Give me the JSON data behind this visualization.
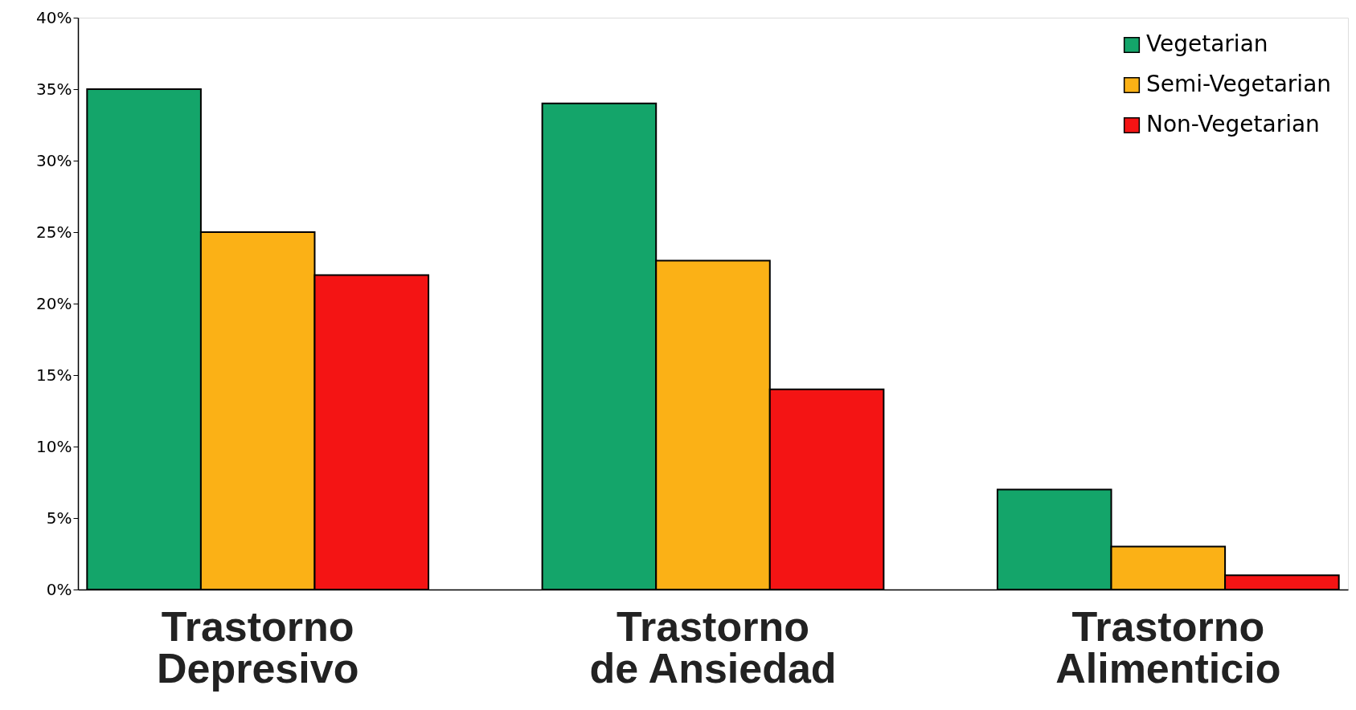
{
  "chart_data": {
    "type": "bar",
    "categories": [
      "Trastorno Depresivo",
      "Trastorno de Ansiedad",
      "Trastorno Alimenticio"
    ],
    "series": [
      {
        "name": "Vegetarian",
        "color": "#14a56a",
        "values": [
          35,
          34,
          7
        ]
      },
      {
        "name": "Semi-Vegetarian",
        "color": "#fbb116",
        "values": [
          25,
          23,
          3
        ]
      },
      {
        "name": "Non-Vegetarian",
        "color": "#f41414",
        "values": [
          22,
          14,
          1
        ]
      }
    ],
    "ylim": [
      0,
      40
    ],
    "yticks": [
      {
        "value": 0,
        "label": "0%"
      },
      {
        "value": 5,
        "label": "5%"
      },
      {
        "value": 10,
        "label": "10%"
      },
      {
        "value": 15,
        "label": "15%"
      },
      {
        "value": 20,
        "label": "20%"
      },
      {
        "value": 25,
        "label": "25%"
      },
      {
        "value": 30,
        "label": "30%"
      },
      {
        "value": 35,
        "label": "35%"
      },
      {
        "value": 40,
        "label": "40%"
      }
    ],
    "grid": false,
    "legend": "top right"
  }
}
